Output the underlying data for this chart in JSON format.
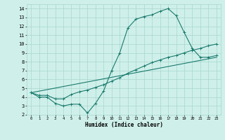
{
  "xlabel": "Humidex (Indice chaleur)",
  "ylabel": "",
  "xlim": [
    -0.5,
    23.5
  ],
  "ylim": [
    2,
    14.5
  ],
  "yticks": [
    2,
    3,
    4,
    5,
    6,
    7,
    8,
    9,
    10,
    11,
    12,
    13,
    14
  ],
  "xticks": [
    0,
    1,
    2,
    3,
    4,
    5,
    6,
    7,
    8,
    9,
    10,
    11,
    12,
    13,
    14,
    15,
    16,
    17,
    18,
    19,
    20,
    21,
    22,
    23
  ],
  "bg_color": "#cff0ea",
  "grid_color": "#a8d5cc",
  "line_color": "#1a7a6e",
  "line1_x": [
    0,
    1,
    2,
    3,
    4,
    5,
    6,
    7,
    8,
    9,
    10,
    11,
    12,
    13,
    14,
    15,
    16,
    17,
    18,
    19,
    20,
    21,
    22,
    23
  ],
  "line1_y": [
    4.5,
    4.0,
    4.0,
    3.3,
    3.0,
    3.2,
    3.2,
    2.2,
    3.3,
    4.7,
    7.0,
    9.0,
    11.8,
    12.8,
    13.1,
    13.3,
    13.7,
    14.0,
    13.2,
    11.3,
    9.5,
    8.5,
    8.5,
    8.7
  ],
  "line2_x": [
    0,
    1,
    2,
    3,
    4,
    5,
    6,
    7,
    8,
    9,
    10,
    11,
    12,
    13,
    14,
    15,
    16,
    17,
    18,
    19,
    20,
    21,
    22,
    23
  ],
  "line2_y": [
    4.5,
    4.2,
    4.2,
    3.8,
    3.8,
    4.3,
    4.6,
    4.8,
    5.1,
    5.4,
    5.8,
    6.2,
    6.7,
    7.1,
    7.5,
    7.9,
    8.2,
    8.5,
    8.7,
    9.0,
    9.3,
    9.5,
    9.8,
    10.0
  ],
  "line3_x": [
    0,
    23
  ],
  "line3_y": [
    4.5,
    8.5
  ]
}
